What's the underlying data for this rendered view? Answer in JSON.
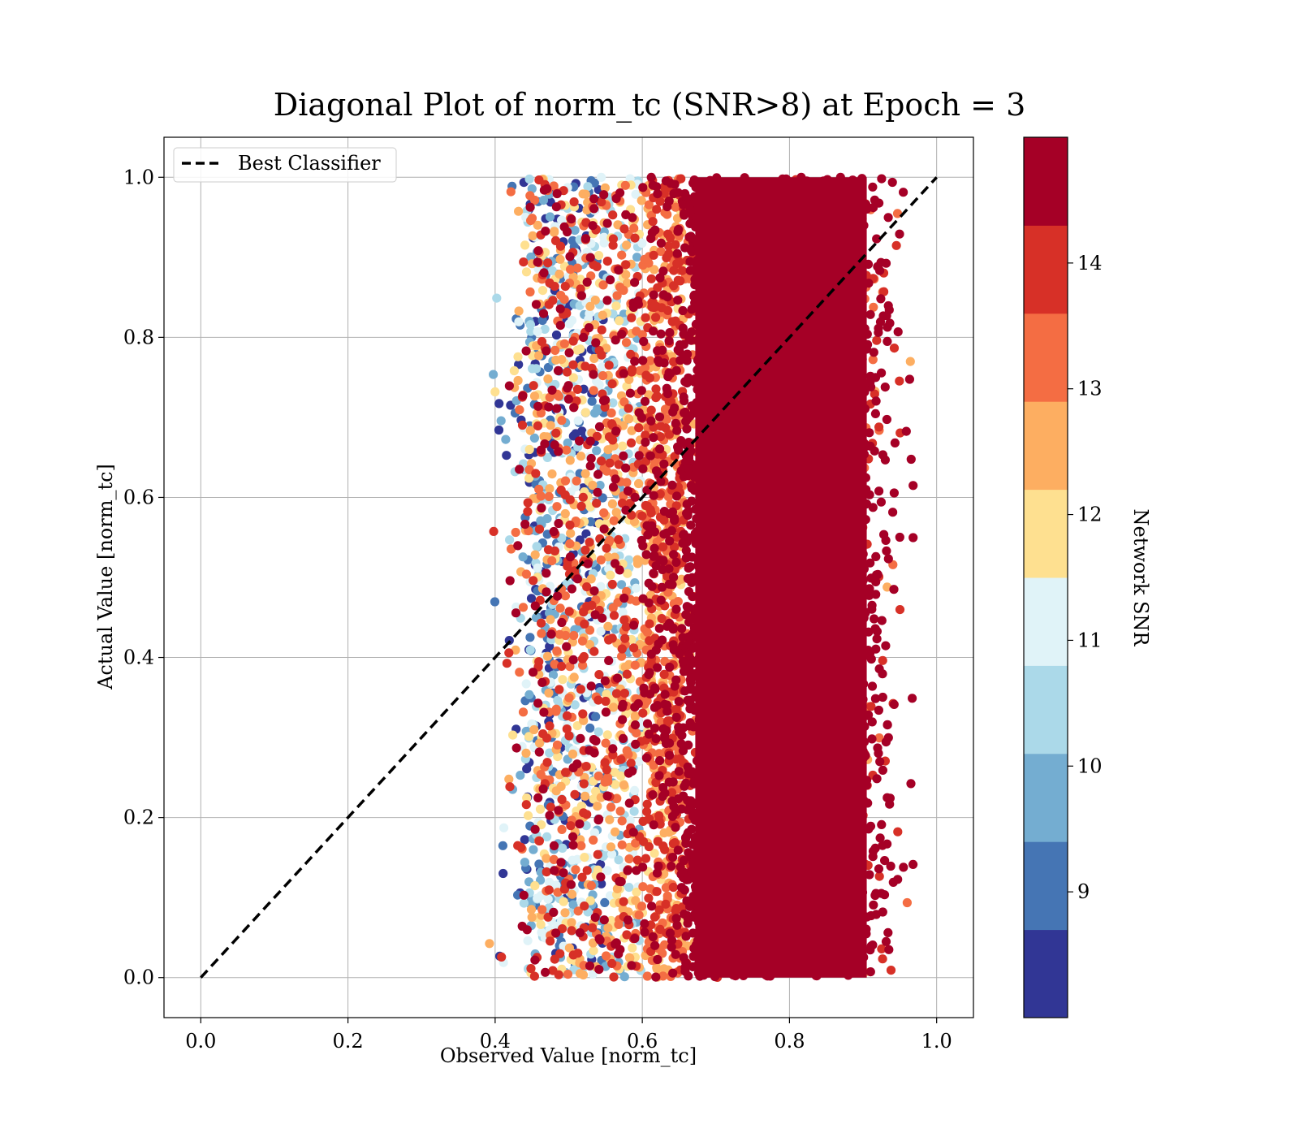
{
  "chart_data": {
    "type": "scatter",
    "title": "Diagonal Plot of norm_tc (SNR>8) at Epoch = 3",
    "xlabel": "Observed Value [norm_tc]",
    "ylabel": "Actual Value [norm_tc]",
    "xlim": [
      -0.05,
      1.05
    ],
    "ylim": [
      -0.05,
      1.05
    ],
    "xticks": [
      0.0,
      0.2,
      0.4,
      0.6,
      0.8,
      1.0
    ],
    "xtick_labels": [
      "0.0",
      "0.2",
      "0.4",
      "0.6",
      "0.8",
      "1.0"
    ],
    "yticks": [
      0.0,
      0.2,
      0.4,
      0.6,
      0.8,
      1.0
    ],
    "ytick_labels": [
      "0.0",
      "0.2",
      "0.4",
      "0.6",
      "0.8",
      "1.0"
    ],
    "grid": true,
    "legend": {
      "position": "upper-left",
      "entries": [
        "Best Classifier"
      ]
    },
    "reference_line": {
      "name": "Best Classifier",
      "style": "dashed",
      "color": "#000000",
      "x": [
        0.0,
        1.0
      ],
      "y": [
        0.0,
        1.0
      ]
    },
    "scatter_summary": {
      "observed_range": [
        0.39,
        0.97
      ],
      "actual_range": [
        0.0,
        1.0
      ],
      "low_snr_observed_band": [
        0.44,
        0.6
      ],
      "high_snr_observed_band": [
        0.62,
        0.95
      ]
    },
    "colorbar": {
      "label": "Network SNR",
      "range": [
        8,
        15
      ],
      "ticks": [
        9,
        10,
        11,
        12,
        13,
        14
      ],
      "tick_labels": [
        "9",
        "10",
        "11",
        "12",
        "13",
        "14"
      ],
      "colors": [
        "#313695",
        "#4575b4",
        "#74add1",
        "#abd9e9",
        "#e0f3f8",
        "#fee090",
        "#fdae61",
        "#f46d43",
        "#d73027",
        "#a50026"
      ]
    }
  }
}
